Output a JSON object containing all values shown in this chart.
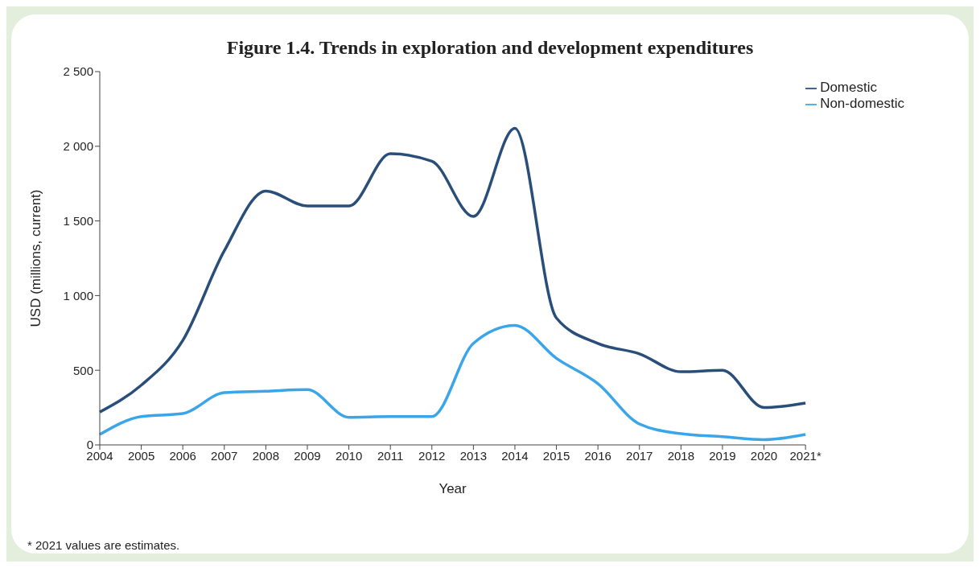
{
  "chart_data": {
    "type": "line",
    "title": "Figure 1.4. Trends in exploration and development expenditures",
    "xlabel": "Year",
    "ylabel": "USD (millions, current)",
    "categories": [
      "2004",
      "2005",
      "2006",
      "2007",
      "2008",
      "2009",
      "2010",
      "2011",
      "2012",
      "2013",
      "2014",
      "2015",
      "2016",
      "2017",
      "2018",
      "2019",
      "2020",
      "2021*"
    ],
    "series": [
      {
        "name": "Domestic",
        "color": "#2a4e7a",
        "values": [
          220,
          400,
          700,
          1300,
          1700,
          1600,
          1600,
          1950,
          1900,
          1530,
          2120,
          850,
          680,
          610,
          490,
          500,
          250,
          280
        ]
      },
      {
        "name": "Non-domestic",
        "color": "#3aa5e8",
        "values": [
          70,
          190,
          210,
          350,
          360,
          370,
          185,
          190,
          190,
          680,
          800,
          580,
          410,
          140,
          75,
          55,
          35,
          70
        ]
      }
    ],
    "ylim": [
      0,
      2500
    ],
    "yticks": [
      0,
      {
        "value": 500,
        "label": "500"
      },
      {
        "value": 1000,
        "label": "1 000"
      },
      {
        "value": 1500,
        "label": "1 500"
      },
      {
        "value": 2000,
        "label": "2 000"
      },
      {
        "value": 2500,
        "label": "2 500"
      }
    ],
    "grid": false,
    "legend": "top right",
    "marker": "none",
    "line_style": "solid",
    "annotations": [
      "* 2021 values are estimates."
    ]
  }
}
